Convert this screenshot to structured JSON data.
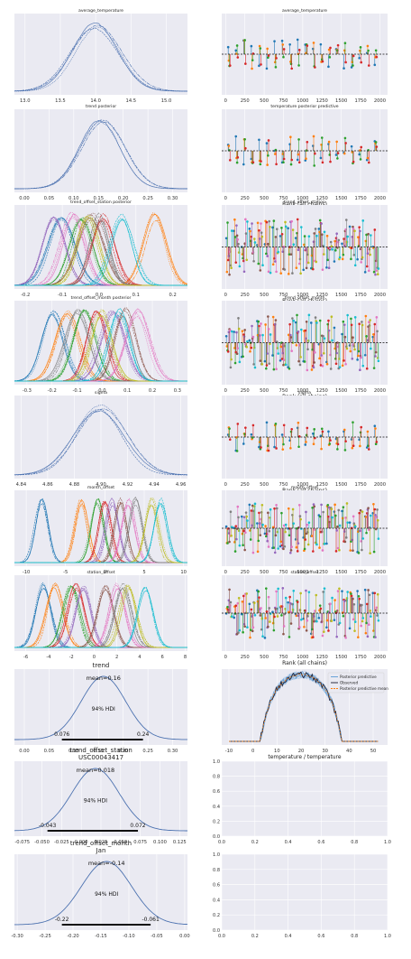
{
  "figure": {
    "background": "#ffffff",
    "panel_bg": "#eaeaf2",
    "grid_color": "#ffffff"
  },
  "chart_data": [
    {
      "type": "line",
      "kind": "density",
      "title": "average_temperature",
      "xticks": [
        "13.0",
        "13.5",
        "14.0",
        "14.5",
        "15.0"
      ],
      "xlim": [
        12.85,
        15.3
      ],
      "n_curves": 4,
      "colors": [
        "#4c72b0"
      ],
      "components": [
        {
          "mu": 14.02,
          "sd": 0.32
        }
      ]
    },
    {
      "type": "scatter",
      "kind": "rank",
      "title": "average_temperature",
      "xlabel": "",
      "xticks": [
        "0",
        "250",
        "500",
        "750",
        "1000",
        "1250",
        "1500",
        "1750",
        "2000"
      ],
      "xlim": [
        -50,
        2100
      ],
      "colors": [
        "#1f77b4",
        "#ff7f0e",
        "#2ca02c",
        "#d62728"
      ]
    },
    {
      "type": "line",
      "kind": "density",
      "title": "trend posterior",
      "xticks": [
        "0.00",
        "0.05",
        "0.10",
        "0.15",
        "0.20",
        "0.25",
        "0.30"
      ],
      "xlim": [
        -0.02,
        0.33
      ],
      "n_curves": 4,
      "colors": [
        "#4c72b0"
      ],
      "components": [
        {
          "mu": 0.155,
          "sd": 0.045
        }
      ]
    },
    {
      "type": "scatter",
      "kind": "rank",
      "title": "temperature posterior predictive",
      "xlabel": "Rank (all chains)",
      "xticks": [
        "0",
        "250",
        "500",
        "750",
        "1000",
        "1250",
        "1500",
        "1750",
        "2000"
      ],
      "xlim": [
        -50,
        2100
      ],
      "colors": [
        "#1f77b4",
        "#ff7f0e",
        "#2ca02c",
        "#d62728"
      ]
    },
    {
      "type": "line",
      "kind": "density",
      "title": "trend_offset_station posterior",
      "xticks": [
        "-0.2",
        "-0.1",
        "0.0",
        "0.1",
        "0.2"
      ],
      "xlim": [
        -0.23,
        0.24
      ],
      "n_curves": 4,
      "colors": [
        "#1f77b4",
        "#ff7f0e",
        "#2ca02c",
        "#d62728",
        "#9467bd",
        "#8c564b",
        "#e377c2",
        "#7f7f7f",
        "#bcbd22",
        "#17becf"
      ],
      "components": [
        {
          "mu": -0.1,
          "sd": 0.035
        },
        {
          "mu": 0.15,
          "sd": 0.03
        },
        {
          "mu": -0.05,
          "sd": 0.03
        },
        {
          "mu": 0.01,
          "sd": 0.03
        },
        {
          "mu": -0.12,
          "sd": 0.03
        },
        {
          "mu": -0.02,
          "sd": 0.035
        },
        {
          "mu": -0.07,
          "sd": 0.03
        },
        {
          "mu": 0.0,
          "sd": 0.025
        },
        {
          "mu": -0.03,
          "sd": 0.03
        },
        {
          "mu": 0.06,
          "sd": 0.03
        }
      ]
    },
    {
      "type": "scatter",
      "kind": "rank",
      "title": "trend_offset_station",
      "xlabel": "Rank (all chains)",
      "xticks": [
        "0",
        "250",
        "500",
        "750",
        "1000",
        "1250",
        "1500",
        "1750",
        "2000"
      ],
      "xlim": [
        -50,
        2100
      ],
      "colors": [
        "#1f77b4",
        "#ff7f0e",
        "#2ca02c",
        "#d62728",
        "#9467bd",
        "#8c564b",
        "#e377c2",
        "#7f7f7f",
        "#bcbd22",
        "#17becf"
      ]
    },
    {
      "type": "line",
      "kind": "density",
      "title": "trend_offset_month posterior",
      "xticks": [
        "-0.3",
        "-0.2",
        "-0.1",
        "0.0",
        "0.1",
        "0.2",
        "0.3"
      ],
      "xlim": [
        -0.35,
        0.34
      ],
      "n_curves": 4,
      "colors": [
        "#1f77b4",
        "#ff7f0e",
        "#2ca02c",
        "#d62728",
        "#9467bd",
        "#8c564b",
        "#e377c2",
        "#7f7f7f",
        "#bcbd22",
        "#17becf"
      ],
      "components": [
        {
          "mu": -0.2,
          "sd": 0.045
        },
        {
          "mu": -0.14,
          "sd": 0.045
        },
        {
          "mu": -0.07,
          "sd": 0.045
        },
        {
          "mu": -0.02,
          "sd": 0.04
        },
        {
          "mu": 0.04,
          "sd": 0.045
        },
        {
          "mu": 0.09,
          "sd": 0.04
        },
        {
          "mu": 0.14,
          "sd": 0.045
        },
        {
          "mu": -0.1,
          "sd": 0.045
        },
        {
          "mu": 0.0,
          "sd": 0.04
        },
        {
          "mu": 0.07,
          "sd": 0.04
        }
      ]
    },
    {
      "type": "scatter",
      "kind": "rank",
      "title": "trend_offset_month",
      "xlabel": "Rank (all chains)",
      "xticks": [
        "0",
        "250",
        "500",
        "750",
        "1000",
        "1250",
        "1500",
        "1750",
        "2000"
      ],
      "xlim": [
        -50,
        2100
      ],
      "colors": [
        "#1f77b4",
        "#ff7f0e",
        "#2ca02c",
        "#d62728",
        "#9467bd",
        "#8c564b",
        "#e377c2",
        "#7f7f7f",
        "#bcbd22",
        "#17becf"
      ]
    },
    {
      "type": "line",
      "kind": "density",
      "title": "sigma",
      "xticks": [
        "4.84",
        "4.86",
        "4.88",
        "4.90",
        "4.92",
        "4.94",
        "4.96"
      ],
      "xlim": [
        4.835,
        4.965
      ],
      "n_curves": 4,
      "colors": [
        "#4c72b0"
      ],
      "components": [
        {
          "mu": 4.898,
          "sd": 0.018
        }
      ]
    },
    {
      "type": "scatter",
      "kind": "rank",
      "title": "sigma",
      "xlabel": "Rank (all chains)",
      "xticks": [
        "0",
        "250",
        "500",
        "750",
        "1000",
        "1250",
        "1500",
        "1750",
        "2000"
      ],
      "xlim": [
        -50,
        2100
      ],
      "colors": [
        "#1f77b4",
        "#ff7f0e",
        "#2ca02c",
        "#d62728"
      ]
    },
    {
      "type": "line",
      "kind": "density",
      "title": "month_offset",
      "xticks": [
        "-10",
        "-5",
        "0",
        "5",
        "10"
      ],
      "xlim": [
        -11.5,
        10.5
      ],
      "n_curves": 4,
      "colors": [
        "#1f77b4",
        "#ff7f0e",
        "#2ca02c",
        "#d62728",
        "#9467bd",
        "#8c564b",
        "#e377c2",
        "#7f7f7f",
        "#bcbd22",
        "#17becf"
      ],
      "components": [
        {
          "mu": -8,
          "sd": 0.8
        },
        {
          "mu": -3,
          "sd": 0.8
        },
        {
          "mu": -1,
          "sd": 0.8
        },
        {
          "mu": 0,
          "sd": 0.8
        },
        {
          "mu": 1,
          "sd": 0.8
        },
        {
          "mu": 2,
          "sd": 0.8
        },
        {
          "mu": 3,
          "sd": 0.8
        },
        {
          "mu": 4,
          "sd": 0.8
        },
        {
          "mu": 6,
          "sd": 0.8
        },
        {
          "mu": 7,
          "sd": 0.8
        }
      ]
    },
    {
      "type": "scatter",
      "kind": "rank",
      "title": "month_offset",
      "xlabel": "Rank (all chains)",
      "xticks": [
        "0",
        "250",
        "500",
        "750",
        "1000",
        "1250",
        "1500",
        "1750",
        "2000"
      ],
      "xlim": [
        -50,
        2100
      ],
      "colors": [
        "#1f77b4",
        "#ff7f0e",
        "#2ca02c",
        "#d62728",
        "#9467bd",
        "#8c564b",
        "#e377c2",
        "#7f7f7f",
        "#bcbd22",
        "#17becf"
      ]
    },
    {
      "type": "line",
      "kind": "density",
      "title": "station_offset",
      "xticks": [
        "-6",
        "-4",
        "-2",
        "0",
        "2",
        "4",
        "6",
        "8"
      ],
      "xlim": [
        -7,
        8.2
      ],
      "n_curves": 4,
      "colors": [
        "#1f77b4",
        "#ff7f0e",
        "#2ca02c",
        "#d62728",
        "#9467bd",
        "#8c564b",
        "#e377c2",
        "#7f7f7f",
        "#bcbd22",
        "#17becf"
      ],
      "components": [
        {
          "mu": -4.5,
          "sd": 0.7
        },
        {
          "mu": -3.5,
          "sd": 0.7
        },
        {
          "mu": -2,
          "sd": 0.7
        },
        {
          "mu": -1.5,
          "sd": 0.7
        },
        {
          "mu": -1,
          "sd": 0.7
        },
        {
          "mu": 1,
          "sd": 0.7
        },
        {
          "mu": 2,
          "sd": 0.7
        },
        {
          "mu": 2.5,
          "sd": 0.7
        },
        {
          "mu": 3,
          "sd": 0.7
        },
        {
          "mu": 4.5,
          "sd": 0.7
        }
      ]
    },
    {
      "type": "scatter",
      "kind": "rank",
      "title": "station_offset",
      "xlabel": "Rank (all chains)",
      "xticks": [
        "0",
        "250",
        "500",
        "750",
        "1000",
        "1250",
        "1500",
        "1750",
        "2000"
      ],
      "xlim": [
        -50,
        2100
      ],
      "colors": [
        "#1f77b4",
        "#ff7f0e",
        "#2ca02c",
        "#d62728",
        "#9467bd",
        "#8c564b",
        "#e377c2",
        "#7f7f7f",
        "#bcbd22",
        "#17becf"
      ]
    },
    {
      "type": "line",
      "kind": "posterior",
      "title": "trend",
      "xticks": [
        "0.00",
        "0.05",
        "0.10",
        "0.15",
        "0.20",
        "0.25",
        "0.30"
      ],
      "xlim": [
        -0.02,
        0.33
      ],
      "mean_label": "mean=0.16",
      "mean": 0.16,
      "hdi_label": "94% HDI",
      "hdi": [
        0.076,
        0.24
      ],
      "hdi_labels": [
        "0.076",
        "0.24"
      ],
      "sd": 0.045
    },
    {
      "type": "line",
      "kind": "ppc",
      "title": "",
      "xlabel": "temperature / temperature",
      "xticks": [
        "-10",
        "0",
        "10",
        "20",
        "30",
        "40",
        "50"
      ],
      "xlim": [
        -13,
        56
      ],
      "legend": [
        "Posterior predictive",
        "Observed",
        "Posterior predictive mean"
      ],
      "legend_position": "upper right",
      "colors": [
        "#5b9bd5",
        "#1a1a2e",
        "#ff7f0e"
      ]
    },
    {
      "type": "line",
      "kind": "posterior",
      "title": "trend_offset_station\nUSC00043417",
      "xticks": [
        "-0.075",
        "-0.050",
        "-0.025",
        "0.000",
        "0.025",
        "0.050",
        "0.075",
        "0.100",
        "0.125"
      ],
      "xlim": [
        -0.085,
        0.135
      ],
      "mean_label": "mean=0.018",
      "mean": 0.018,
      "hdi_label": "94% HDI",
      "hdi": [
        -0.043,
        0.072
      ],
      "hdi_labels": [
        "-0.043",
        "0.072"
      ],
      "sd": 0.03
    },
    {
      "type": "line",
      "kind": "empty",
      "title": "",
      "xticks": [
        "0.0",
        "0.2",
        "0.4",
        "0.6",
        "0.8",
        "1.0"
      ],
      "yticks": [
        "0.0",
        "0.2",
        "0.4",
        "0.6",
        "0.8",
        "1.0"
      ]
    },
    {
      "type": "line",
      "kind": "posterior",
      "title": "trend_offset_month\nJan",
      "xticks": [
        "-0.30",
        "-0.25",
        "-0.20",
        "-0.15",
        "-0.10",
        "-0.05",
        "0.00"
      ],
      "xlim": [
        -0.305,
        0.005
      ],
      "mean_label": "mean=-0.14",
      "mean": -0.14,
      "hdi_label": "94% HDI",
      "hdi": [
        -0.22,
        -0.061
      ],
      "hdi_labels": [
        "-0.22",
        "-0.061"
      ],
      "sd": 0.045
    },
    {
      "type": "line",
      "kind": "empty",
      "title": "",
      "xticks": [
        "0.0",
        "0.2",
        "0.4",
        "0.6",
        "0.8",
        "1.0"
      ],
      "yticks": [
        "0.0",
        "0.2",
        "0.4",
        "0.6",
        "0.8",
        "1.0"
      ]
    }
  ]
}
